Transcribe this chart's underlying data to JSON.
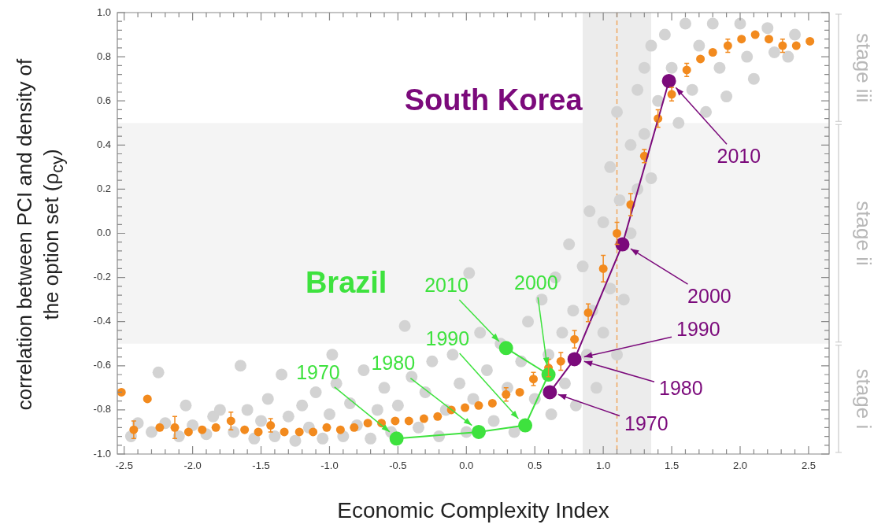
{
  "chart_data": {
    "type": "scatter",
    "xlabel": "Economic Complexity Index",
    "ylabel": "correlation between PCI and density of the option set (ρ$_{cy}$)",
    "xlim": [
      -2.55,
      2.65
    ],
    "ylim": [
      -1,
      1
    ],
    "xticks": [
      -2.5,
      {
        "value": -2.4,
        "label": null
      },
      {
        "value": -2.3,
        "label": null
      },
      {
        "value": -2.2,
        "label": null
      },
      {
        "value": -2.1,
        "label": null
      },
      {
        "value": -2,
        "label": "-2.0"
      },
      {
        "value": -1.9,
        "label": null
      },
      {
        "value": -1.8,
        "label": null
      },
      {
        "value": -1.7,
        "label": null
      },
      {
        "value": -1.6,
        "label": null
      },
      -1.5,
      {
        "value": -1.4,
        "label": null
      },
      {
        "value": -1.3,
        "label": null
      },
      {
        "value": -1.2,
        "label": null
      },
      {
        "value": -1.1,
        "label": null
      },
      {
        "value": -1,
        "label": "-1.0"
      },
      {
        "value": -0.9,
        "label": null
      },
      {
        "value": -0.8,
        "label": null
      },
      {
        "value": -0.7,
        "label": null
      },
      {
        "value": -0.6,
        "label": null
      },
      -0.5,
      {
        "value": -0.4,
        "label": null
      },
      {
        "value": -0.3,
        "label": null
      },
      {
        "value": -0.2,
        "label": null
      },
      {
        "value": -0.1,
        "label": null
      },
      {
        "value": 0,
        "label": "0.0"
      },
      {
        "value": 0.1,
        "label": null
      },
      {
        "value": 0.2,
        "label": null
      },
      {
        "value": 0.3,
        "label": null
      },
      {
        "value": 0.4,
        "label": null
      },
      0.5,
      {
        "value": 0.6,
        "label": null
      },
      {
        "value": 0.7,
        "label": null
      },
      {
        "value": 0.8,
        "label": null
      },
      {
        "value": 0.9,
        "label": null
      },
      {
        "value": 1,
        "label": "1.0"
      },
      {
        "value": 1.1,
        "label": null
      },
      {
        "value": 1.2,
        "label": null
      },
      {
        "value": 1.3,
        "label": null
      },
      {
        "value": 1.4,
        "label": null
      },
      1.5,
      {
        "value": 1.6,
        "label": null
      },
      {
        "value": 1.7,
        "label": null
      },
      {
        "value": 1.8,
        "label": null
      },
      {
        "value": 1.9,
        "label": null
      },
      {
        "value": 2,
        "label": "2.0"
      },
      {
        "value": 2.1,
        "label": null
      },
      {
        "value": 2.2,
        "label": null
      },
      {
        "value": 2.3,
        "label": null
      },
      {
        "value": 2.4,
        "label": null
      },
      2.5
    ],
    "yticks": [
      {
        "value": -1,
        "label": "-1.0"
      },
      {
        "value": -0.96,
        "label": null
      },
      {
        "value": -0.92,
        "label": null
      },
      {
        "value": -0.88,
        "label": null
      },
      {
        "value": -0.84,
        "label": null
      },
      -0.8,
      {
        "value": -0.76,
        "label": null
      },
      {
        "value": -0.72,
        "label": null
      },
      {
        "value": -0.68,
        "label": null
      },
      {
        "value": -0.64,
        "label": null
      },
      -0.6,
      {
        "value": -0.56,
        "label": null
      },
      {
        "value": -0.52,
        "label": null
      },
      {
        "value": -0.48,
        "label": null
      },
      {
        "value": -0.44,
        "label": null
      },
      -0.4,
      {
        "value": -0.36,
        "label": null
      },
      {
        "value": -0.32,
        "label": null
      },
      {
        "value": -0.28,
        "label": null
      },
      {
        "value": -0.24,
        "label": null
      },
      -0.2,
      {
        "value": -0.16,
        "label": null
      },
      {
        "value": -0.12,
        "label": null
      },
      {
        "value": -0.08,
        "label": null
      },
      {
        "value": -0.04,
        "label": null
      },
      {
        "value": 0,
        "label": "0.0"
      },
      {
        "value": 0.04,
        "label": null
      },
      {
        "value": 0.08,
        "label": null
      },
      {
        "value": 0.12,
        "label": null
      },
      {
        "value": 0.16,
        "label": null
      },
      0.2,
      {
        "value": 0.24,
        "label": null
      },
      {
        "value": 0.28,
        "label": null
      },
      {
        "value": 0.32,
        "label": null
      },
      {
        "value": 0.36,
        "label": null
      },
      0.4,
      {
        "value": 0.44,
        "label": null
      },
      {
        "value": 0.48,
        "label": null
      },
      {
        "value": 0.52,
        "label": null
      },
      {
        "value": 0.56,
        "label": null
      },
      0.6,
      {
        "value": 0.64,
        "label": null
      },
      {
        "value": 0.68,
        "label": null
      },
      {
        "value": 0.72,
        "label": null
      },
      {
        "value": 0.76,
        "label": null
      },
      0.8,
      {
        "value": 0.84,
        "label": null
      },
      {
        "value": 0.88,
        "label": null
      },
      {
        "value": 0.92,
        "label": null
      },
      {
        "value": 0.96,
        "label": null
      },
      {
        "value": 1,
        "label": "1.0"
      }
    ],
    "grid": false,
    "legend": false,
    "marker": "circle",
    "series": [
      {
        "type": "scatter",
        "color": "#d3d3d3",
        "x": [
          -2.45,
          -2.4,
          -2.3,
          -2.25,
          -2.2,
          -2.1,
          -2.05,
          -2.0,
          -1.9,
          -1.85,
          -1.8,
          -1.7,
          -1.65,
          -1.6,
          -1.55,
          -1.5,
          -1.45,
          -1.4,
          -1.35,
          -1.3,
          -1.25,
          -1.2,
          -1.15,
          -1.1,
          -1.05,
          -1.0,
          -0.98,
          -0.95,
          -0.9,
          -0.85,
          -0.8,
          -0.75,
          -0.7,
          -0.65,
          -0.6,
          -0.55,
          -0.5,
          -0.45,
          -0.4,
          -0.35,
          -0.3,
          -0.25,
          -0.2,
          -0.15,
          -0.1,
          -0.05,
          0.0,
          0.02,
          0.05,
          0.1,
          0.15,
          0.2,
          0.25,
          0.3,
          0.35,
          0.4,
          0.45,
          0.5,
          0.55,
          0.6,
          0.62,
          0.65,
          0.7,
          0.72,
          0.75,
          0.78,
          0.8,
          0.85,
          0.88,
          0.9,
          0.92,
          0.95,
          1.0,
          1.0,
          1.05,
          1.05,
          1.1,
          1.1,
          1.12,
          1.15,
          1.2,
          1.2,
          1.25,
          1.25,
          1.3,
          1.3,
          1.35,
          1.35,
          1.4,
          1.45,
          1.5,
          1.55,
          1.6,
          1.65,
          1.7,
          1.75,
          1.8,
          1.85,
          1.9,
          2.0,
          2.05,
          2.1,
          2.2,
          2.25,
          2.35,
          2.4
        ],
        "values": [
          -0.92,
          -0.86,
          -0.9,
          -0.63,
          -0.86,
          -0.92,
          -0.78,
          -0.87,
          -0.91,
          -0.83,
          -0.8,
          -0.9,
          -0.6,
          -0.8,
          -0.93,
          -0.85,
          -0.75,
          -0.92,
          -0.64,
          -0.83,
          -0.94,
          -0.78,
          -0.88,
          -0.72,
          -0.93,
          -0.82,
          -0.55,
          -0.68,
          -0.92,
          -0.77,
          -0.87,
          -0.62,
          -0.93,
          -0.8,
          -0.7,
          -0.9,
          -0.78,
          -0.42,
          -0.65,
          -0.88,
          -0.72,
          -0.58,
          -0.92,
          -0.8,
          -0.55,
          -0.68,
          -0.9,
          -0.18,
          -0.75,
          -0.45,
          -0.62,
          -0.85,
          -0.5,
          -0.7,
          -0.9,
          -0.58,
          -0.4,
          -0.75,
          -0.3,
          -0.55,
          -0.82,
          -0.2,
          -0.45,
          -0.68,
          -0.05,
          -0.35,
          -0.78,
          -0.15,
          -0.55,
          0.1,
          -0.35,
          -0.7,
          0.05,
          -0.45,
          0.3,
          -0.25,
          -0.55,
          0.55,
          0.15,
          -0.3,
          0.4,
          0.0,
          0.65,
          0.2,
          0.75,
          0.45,
          0.85,
          0.25,
          0.6,
          0.9,
          0.75,
          0.5,
          0.95,
          0.65,
          0.85,
          0.55,
          0.95,
          0.75,
          0.62,
          0.95,
          0.8,
          0.7,
          0.93,
          0.82,
          0.8,
          0.9
        ]
      },
      {
        "type": "scatter",
        "color": "#f28a1e",
        "x": [
          -2.52,
          -2.43,
          -2.33,
          -2.24,
          -2.13,
          -2.03,
          -1.93,
          -1.83,
          -1.72,
          -1.62,
          -1.52,
          -1.43,
          -1.33,
          -1.22,
          -1.12,
          -1.02,
          -0.92,
          -0.82,
          -0.72,
          -0.62,
          -0.52,
          -0.42,
          -0.31,
          -0.21,
          -0.11,
          -0.01,
          0.09,
          0.19,
          0.29,
          0.39,
          0.49,
          0.6,
          0.69,
          0.79,
          0.89,
          1.0,
          1.1,
          1.2,
          1.3,
          1.4,
          1.5,
          1.61,
          1.71,
          1.8,
          1.91,
          2.01,
          2.11,
          2.21,
          2.31,
          2.41,
          2.51
        ],
        "values": [
          -0.72,
          -0.89,
          -0.75,
          -0.88,
          -0.88,
          -0.9,
          -0.89,
          -0.88,
          -0.85,
          -0.89,
          -0.9,
          -0.87,
          -0.9,
          -0.9,
          -0.9,
          -0.88,
          -0.89,
          -0.88,
          -0.86,
          -0.86,
          -0.85,
          -0.85,
          -0.84,
          -0.83,
          -0.8,
          -0.79,
          -0.78,
          -0.77,
          -0.73,
          -0.72,
          -0.66,
          -0.61,
          -0.58,
          -0.48,
          -0.36,
          -0.16,
          0,
          0.13,
          0.35,
          0.52,
          0.63,
          0.74,
          0.79,
          0.82,
          0.85,
          0.88,
          0.9,
          0.88,
          0.85,
          0.85,
          0.87
        ],
        "errors": [
          null,
          0.04,
          null,
          null,
          0.05,
          null,
          null,
          null,
          0.04,
          null,
          null,
          0.03,
          null,
          null,
          null,
          null,
          null,
          null,
          null,
          null,
          null,
          null,
          null,
          null,
          null,
          null,
          null,
          null,
          0.03,
          null,
          0.03,
          0.04,
          0.04,
          0.04,
          0.04,
          0.06,
          0.05,
          0.05,
          0.03,
          0.04,
          0.03,
          0.03,
          null,
          null,
          0.03,
          null,
          null,
          null,
          0.03,
          null,
          null
        ]
      },
      {
        "name": "Brazil",
        "type": "line",
        "color": "#3ee23e",
        "x": [
          -0.51,
          0.09,
          0.43,
          0.6,
          0.29
        ],
        "values": [
          -0.93,
          -0.9,
          -0.87,
          -0.64,
          -0.52
        ]
      },
      {
        "name": "South Korea",
        "type": "line",
        "color": "#7b0a7b",
        "x": [
          0.61,
          0.79,
          1.14,
          1.48
        ],
        "values": [
          -0.72,
          -0.57,
          -0.05,
          0.69
        ]
      }
    ],
    "bands": [
      {
        "axis": "y",
        "from": -0.5,
        "to": 0.5,
        "color": "#f4f4f4"
      },
      {
        "axis": "x",
        "from": 0.85,
        "to": 1.35,
        "color": "#ececec"
      }
    ],
    "ref_lines": [
      {
        "axis": "x",
        "value": 1.1,
        "color": "#f0a860",
        "line_style": "dashed"
      }
    ],
    "annotations": [
      {
        "text": "1970",
        "x": -0.56,
        "y": -0.9
      },
      {
        "text": "1980",
        "x": 0.04,
        "y": -0.87
      },
      {
        "text": "1990",
        "x": 0.38,
        "y": -0.84
      },
      {
        "text": "2000",
        "x": 0.59,
        "y": -0.6
      },
      {
        "text": "2010",
        "x": 0.24,
        "y": -0.49
      },
      {
        "text": "1970",
        "x": 0.67,
        "y": -0.73
      },
      {
        "text": "1980",
        "x": 0.86,
        "y": -0.58
      },
      {
        "text": "1990",
        "x": 0.86,
        "y": -0.56
      },
      {
        "text": "2000",
        "x": 1.2,
        "y": -0.07
      },
      {
        "text": "2010",
        "x": 1.53,
        "y": 0.66
      },
      "stage iii",
      "stage ii",
      "stage i"
    ]
  }
}
